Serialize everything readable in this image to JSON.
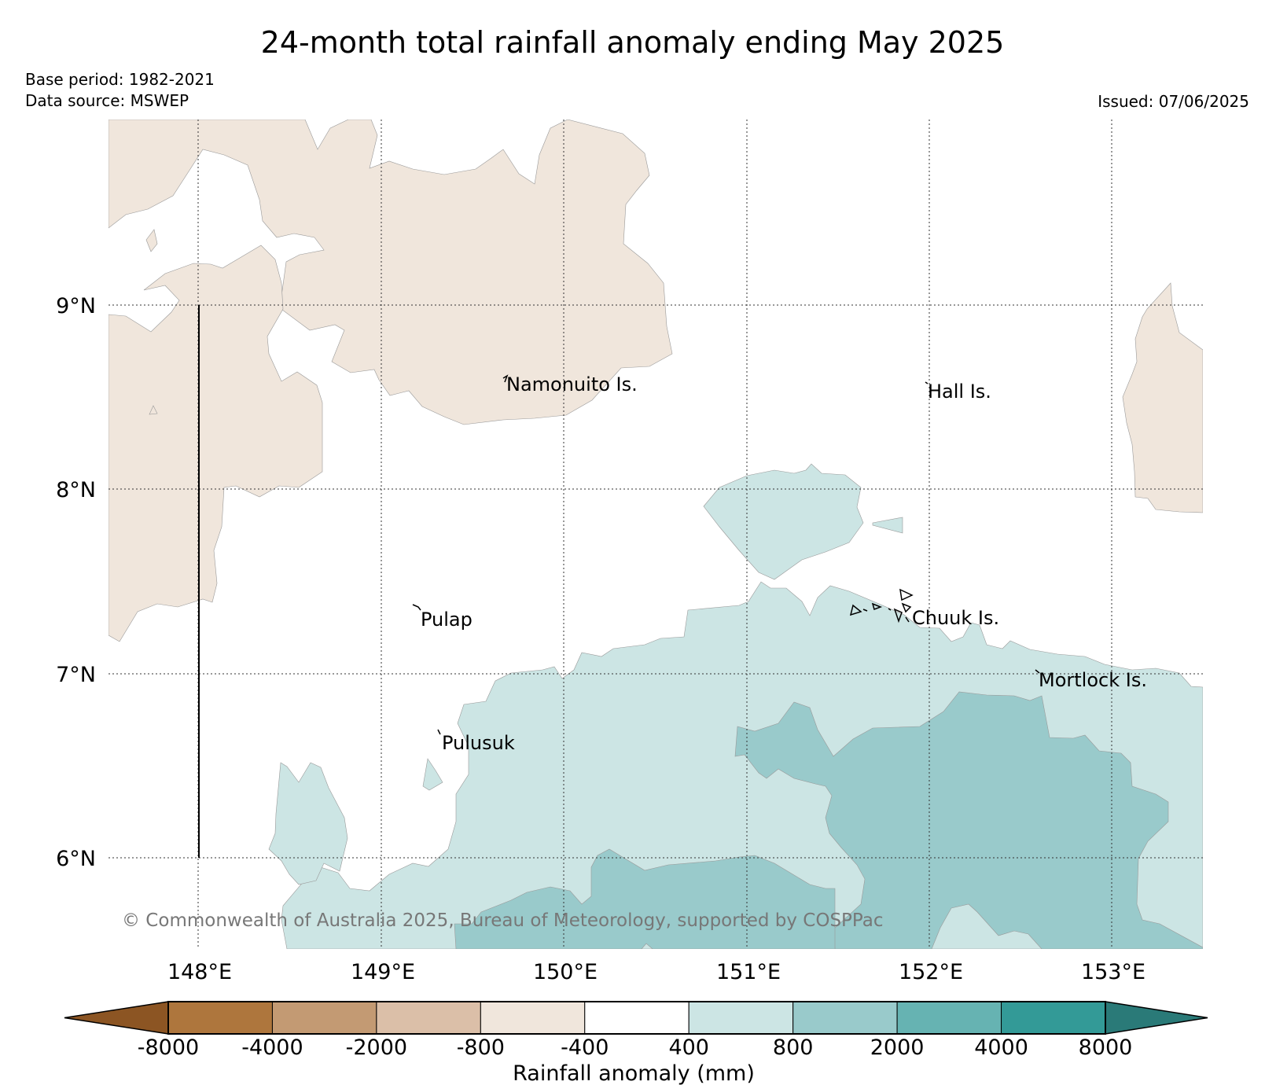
{
  "title": "24-month total rainfall anomaly ending May 2025",
  "base_period": "Base period: 1982-2021",
  "data_source": "Data source: MSWEP",
  "issued": "Issued: 07/06/2025",
  "copyright": "© Commonwealth of Australia 2025, Bureau of Meteorology, supported by COSPPac",
  "map": {
    "lon_ticks": [
      "148°E",
      "149°E",
      "150°E",
      "151°E",
      "152°E",
      "153°E"
    ],
    "lat_ticks": [
      "9°N",
      "8°N",
      "7°N",
      "6°N"
    ],
    "grid": "dotted",
    "places": [
      "Namonuito Is.",
      "Hall Is.",
      "Pulap",
      "Chuuk Is.",
      "Mortlock Is.",
      "Pulusuk"
    ]
  },
  "colorbar": {
    "label": "Rainfall anomaly (mm)",
    "ticks": [
      "-8000",
      "-4000",
      "-2000",
      "-800",
      "-400",
      "400",
      "800",
      "2000",
      "4000",
      "8000"
    ],
    "colors": [
      "#8c5523",
      "#ae763d",
      "#c39a73",
      "#dbbfa8",
      "#f0e6dc",
      "#ffffff",
      "#cce5e4",
      "#99cacb",
      "#66b3b2",
      "#339a97",
      "#2a7a78"
    ]
  },
  "legend_classes": {
    "dry": "#f0e6dc",
    "wet1": "#cce5e4",
    "wet2": "#99cacb"
  }
}
